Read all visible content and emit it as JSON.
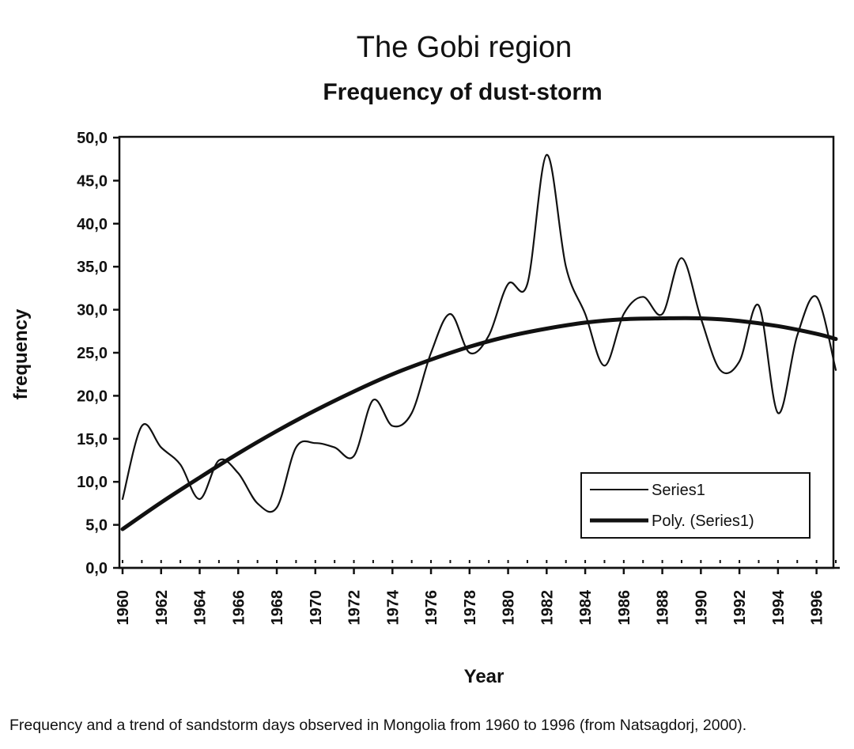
{
  "chart_data": {
    "type": "line",
    "title": "The Gobi region",
    "subtitle": "Frequency of dust-storm",
    "xlabel": "Year",
    "ylabel": "frequency",
    "xlim": [
      1960,
      1997
    ],
    "ylim": [
      0,
      50
    ],
    "y_ticks": [
      "0,0",
      "5,0",
      "10,0",
      "15,0",
      "20,0",
      "25,0",
      "30,0",
      "35,0",
      "40,0",
      "45,0",
      "50,0"
    ],
    "x_ticks": [
      "1960",
      "1962",
      "1964",
      "1966",
      "1968",
      "1970",
      "1972",
      "1974",
      "1976",
      "1978",
      "1980",
      "1982",
      "1984",
      "1986",
      "1988",
      "1990",
      "1992",
      "1994",
      "1996"
    ],
    "grid": false,
    "legend_position": "bottom-right",
    "series": [
      {
        "name": "Series1",
        "style": "thin",
        "x": [
          1960,
          1961,
          1962,
          1963,
          1964,
          1965,
          1966,
          1967,
          1968,
          1969,
          1970,
          1971,
          1972,
          1973,
          1974,
          1975,
          1976,
          1977,
          1978,
          1979,
          1980,
          1981,
          1982,
          1983,
          1984,
          1985,
          1986,
          1987,
          1988,
          1989,
          1990,
          1991,
          1992,
          1993,
          1994,
          1995,
          1996,
          1997
        ],
        "values": [
          8.0,
          16.5,
          14.0,
          12.0,
          8.0,
          12.5,
          11.0,
          7.5,
          7.0,
          14.0,
          14.5,
          14.0,
          13.0,
          19.5,
          16.5,
          18.0,
          25.0,
          29.5,
          25.0,
          27.0,
          33.0,
          33.0,
          48.0,
          35.0,
          29.5,
          23.5,
          29.5,
          31.5,
          29.5,
          36.0,
          29.0,
          23.0,
          24.0,
          30.5,
          18.0,
          27.0,
          31.5,
          23.0
        ]
      },
      {
        "name": "Poly. (Series1)",
        "style": "thick",
        "x": [
          1960,
          1962,
          1964,
          1966,
          1968,
          1970,
          1972,
          1974,
          1976,
          1978,
          1980,
          1982,
          1984,
          1986,
          1988,
          1990,
          1992,
          1994,
          1996,
          1997
        ],
        "values": [
          4.5,
          7.6,
          10.5,
          13.3,
          15.9,
          18.3,
          20.5,
          22.5,
          24.2,
          25.7,
          26.9,
          27.8,
          28.5,
          28.9,
          29.0,
          29.0,
          28.7,
          28.1,
          27.2,
          26.6
        ]
      }
    ],
    "caption": "Frequency and a trend of sandstorm days observed in Mongolia from 1960 to 1996 (from Natsagdorj, 2000)."
  }
}
